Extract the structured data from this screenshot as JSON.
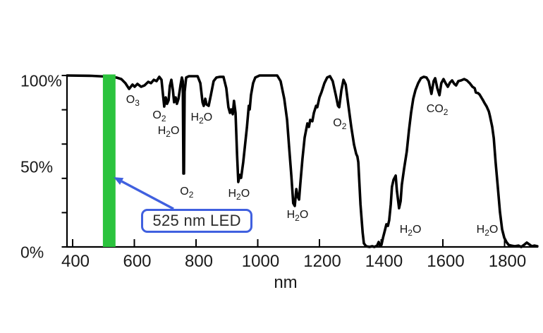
{
  "figure": {
    "background": "#ffffff"
  },
  "chart_data": {
    "type": "line",
    "title": "",
    "xlabel": "nm",
    "ylabel": "",
    "xlim": [
      382,
      1909
    ],
    "ylim": [
      0,
      100
    ],
    "grid": false,
    "legend": "none",
    "x_ticks": [
      400,
      600,
      800,
      1000,
      1200,
      1400,
      1600,
      1800
    ],
    "y_tick_pcts": [
      0,
      20,
      40,
      60,
      80,
      100
    ],
    "y_tick_labels": [
      {
        "pct": 100,
        "label": "100%"
      },
      {
        "pct": 50,
        "label": "50%"
      },
      {
        "pct": 0,
        "label": "0%"
      }
    ],
    "series": [
      {
        "name": "atmospheric-transmission",
        "color": "#000000",
        "points": [
          [
            382,
            100
          ],
          [
            462,
            99.8
          ],
          [
            507,
            99.4
          ],
          [
            542,
            98.8
          ],
          [
            558,
            97.9
          ],
          [
            571,
            95.5
          ],
          [
            583,
            92.2
          ],
          [
            594,
            94.7
          ],
          [
            601,
            93.4
          ],
          [
            610,
            95.1
          ],
          [
            622,
            93.4
          ],
          [
            633,
            94.2
          ],
          [
            645,
            96.3
          ],
          [
            654,
            95.5
          ],
          [
            663,
            97.5
          ],
          [
            672,
            96.7
          ],
          [
            681,
            99.2
          ],
          [
            688,
            97.5
          ],
          [
            693,
            88.5
          ],
          [
            697,
            81.9
          ],
          [
            702,
            87.2
          ],
          [
            706,
            83.5
          ],
          [
            711,
            85.6
          ],
          [
            715,
            93.8
          ],
          [
            720,
            97.5
          ],
          [
            725,
            91.4
          ],
          [
            729,
            84.4
          ],
          [
            734,
            87.2
          ],
          [
            738,
            83.5
          ],
          [
            743,
            86.4
          ],
          [
            750,
            94.7
          ],
          [
            754,
            98.8
          ],
          [
            757,
            96.7
          ],
          [
            759,
            42.8
          ],
          [
            761,
            42.8
          ],
          [
            763,
            90.5
          ],
          [
            768,
            98.8
          ],
          [
            777,
            99.6
          ],
          [
            805,
            99.6
          ],
          [
            814,
            95.5
          ],
          [
            821,
            84.4
          ],
          [
            825,
            82.3
          ],
          [
            830,
            86.4
          ],
          [
            834,
            83.1
          ],
          [
            841,
            82.3
          ],
          [
            848,
            88.5
          ],
          [
            857,
            96.7
          ],
          [
            866,
            98.8
          ],
          [
            878,
            99.2
          ],
          [
            889,
            99.2
          ],
          [
            898,
            92.6
          ],
          [
            905,
            81.5
          ],
          [
            910,
            78.2
          ],
          [
            914,
            80.2
          ],
          [
            919,
            77.4
          ],
          [
            923,
            85.2
          ],
          [
            928,
            78.2
          ],
          [
            933,
            53.5
          ],
          [
            937,
            37.9
          ],
          [
            942,
            42
          ],
          [
            946,
            40.3
          ],
          [
            953,
            49.4
          ],
          [
            965,
            70
          ],
          [
            971,
            82.3
          ],
          [
            974,
            80.2
          ],
          [
            978,
            88.5
          ],
          [
            985,
            95.5
          ],
          [
            992,
            98.8
          ],
          [
            1006,
            100
          ],
          [
            1063,
            100
          ],
          [
            1074,
            96.7
          ],
          [
            1086,
            86.4
          ],
          [
            1095,
            74.1
          ],
          [
            1102,
            57.6
          ],
          [
            1109,
            41.2
          ],
          [
            1115,
            25.5
          ],
          [
            1120,
            23.9
          ],
          [
            1125,
            33.7
          ],
          [
            1129,
            29.6
          ],
          [
            1134,
            27.6
          ],
          [
            1138,
            37
          ],
          [
            1145,
            51.4
          ],
          [
            1152,
            63.8
          ],
          [
            1161,
            72
          ],
          [
            1166,
            70
          ],
          [
            1170,
            74.1
          ],
          [
            1177,
            73.3
          ],
          [
            1182,
            78.2
          ],
          [
            1189,
            82.3
          ],
          [
            1193,
            81.5
          ],
          [
            1200,
            87.2
          ],
          [
            1207,
            90.5
          ],
          [
            1216,
            95.5
          ],
          [
            1225,
            98.8
          ],
          [
            1234,
            99.6
          ],
          [
            1243,
            96.7
          ],
          [
            1253,
            88.5
          ],
          [
            1260,
            82.3
          ],
          [
            1264,
            81.5
          ],
          [
            1271,
            91.4
          ],
          [
            1278,
            97.5
          ],
          [
            1285,
            94.7
          ],
          [
            1294,
            82.3
          ],
          [
            1303,
            70
          ],
          [
            1312,
            59.7
          ],
          [
            1319,
            54.3
          ],
          [
            1323,
            52.7
          ],
          [
            1326,
            49.4
          ],
          [
            1333,
            24.7
          ],
          [
            1340,
            8.2
          ],
          [
            1344,
            2.1
          ],
          [
            1351,
            0.4
          ],
          [
            1362,
            0
          ],
          [
            1371,
            0.4
          ],
          [
            1378,
            0
          ],
          [
            1387,
            0.8
          ],
          [
            1392,
            2.9
          ],
          [
            1397,
            0.4
          ],
          [
            1401,
            1.2
          ],
          [
            1406,
            5.3
          ],
          [
            1413,
            10.3
          ],
          [
            1417,
            13.2
          ],
          [
            1422,
            12.3
          ],
          [
            1426,
            15.6
          ],
          [
            1431,
            24.7
          ],
          [
            1435,
            35
          ],
          [
            1440,
            39.1
          ],
          [
            1447,
            41.6
          ],
          [
            1451,
            32.9
          ],
          [
            1458,
            22.6
          ],
          [
            1463,
            26.7
          ],
          [
            1467,
            36.2
          ],
          [
            1474,
            45.3
          ],
          [
            1483,
            55.6
          ],
          [
            1490,
            67.9
          ],
          [
            1497,
            78.2
          ],
          [
            1504,
            86.4
          ],
          [
            1511,
            91.4
          ],
          [
            1520,
            95.5
          ],
          [
            1529,
            98.4
          ],
          [
            1538,
            99.2
          ],
          [
            1547,
            98.8
          ],
          [
            1554,
            96.7
          ],
          [
            1563,
            89.3
          ],
          [
            1570,
            96.7
          ],
          [
            1575,
            98.4
          ],
          [
            1582,
            92.6
          ],
          [
            1589,
            88.5
          ],
          [
            1595,
            95.5
          ],
          [
            1602,
            97.9
          ],
          [
            1609,
            95.5
          ],
          [
            1616,
            93.4
          ],
          [
            1623,
            95.9
          ],
          [
            1630,
            97.1
          ],
          [
            1637,
            95.1
          ],
          [
            1643,
            94.2
          ],
          [
            1650,
            96.7
          ],
          [
            1659,
            97.1
          ],
          [
            1669,
            97.9
          ],
          [
            1678,
            97.1
          ],
          [
            1687,
            95.5
          ],
          [
            1696,
            93.4
          ],
          [
            1703,
            92.6
          ],
          [
            1707,
            90.1
          ],
          [
            1714,
            89.7
          ],
          [
            1719,
            88.9
          ],
          [
            1726,
            86.8
          ],
          [
            1730,
            85.6
          ],
          [
            1735,
            83.9
          ],
          [
            1742,
            81.9
          ],
          [
            1749,
            79
          ],
          [
            1753,
            76.1
          ],
          [
            1760,
            70
          ],
          [
            1765,
            63.4
          ],
          [
            1771,
            49.4
          ],
          [
            1778,
            35
          ],
          [
            1785,
            20.6
          ],
          [
            1792,
            10.3
          ],
          [
            1799,
            5.3
          ],
          [
            1806,
            2.9
          ],
          [
            1813,
            1.2
          ],
          [
            1822,
            0.8
          ],
          [
            1833,
            0.4
          ],
          [
            1845,
            0.8
          ],
          [
            1854,
            0
          ],
          [
            1863,
            1.2
          ],
          [
            1872,
            2.5
          ],
          [
            1879,
            1.6
          ],
          [
            1888,
            0.4
          ],
          [
            1897,
            0.8
          ],
          [
            1906,
            0.4
          ]
        ]
      }
    ],
    "annotations": [
      {
        "pre": "O",
        "sub": "3",
        "post": "",
        "nm": 595,
        "pct": 85.4
      },
      {
        "pre": "O",
        "sub": "2",
        "post": "",
        "nm": 681,
        "pct": 76.7
      },
      {
        "pre": "H",
        "sub": "2",
        "post": "O",
        "nm": 711,
        "pct": 67.3
      },
      {
        "pre": "H",
        "sub": "2",
        "post": "O",
        "nm": 818,
        "pct": 75.5
      },
      {
        "pre": "O",
        "sub": "2",
        "post": "",
        "nm": 770,
        "pct": 31.9
      },
      {
        "pre": "H",
        "sub": "2",
        "post": "O",
        "nm": 939,
        "pct": 30.9
      },
      {
        "pre": "H",
        "sub": "2",
        "post": "O",
        "nm": 1129,
        "pct": 18.5
      },
      {
        "pre": "O",
        "sub": "2",
        "post": "",
        "nm": 1266,
        "pct": 72.2
      },
      {
        "pre": "CO",
        "sub": "2",
        "post": "",
        "nm": 1582,
        "pct": 80.2
      },
      {
        "pre": "H",
        "sub": "2",
        "post": "O",
        "nm": 1495,
        "pct": 9.9
      },
      {
        "pre": "H",
        "sub": "2",
        "post": "O",
        "nm": 1744,
        "pct": 9.9
      }
    ],
    "led_marker": {
      "nm": 525,
      "band_nm": [
        498,
        539
      ],
      "top_pct": 100.6,
      "color": "#2bc33d"
    },
    "callout": {
      "label": "525 nm LED",
      "border_color": "#4060df",
      "box_left_nm": 622,
      "box_top_pct": 22.2,
      "arrow_tail": [
        727,
        22.2
      ],
      "arrow_tip": [
        533,
        40.7
      ]
    }
  }
}
